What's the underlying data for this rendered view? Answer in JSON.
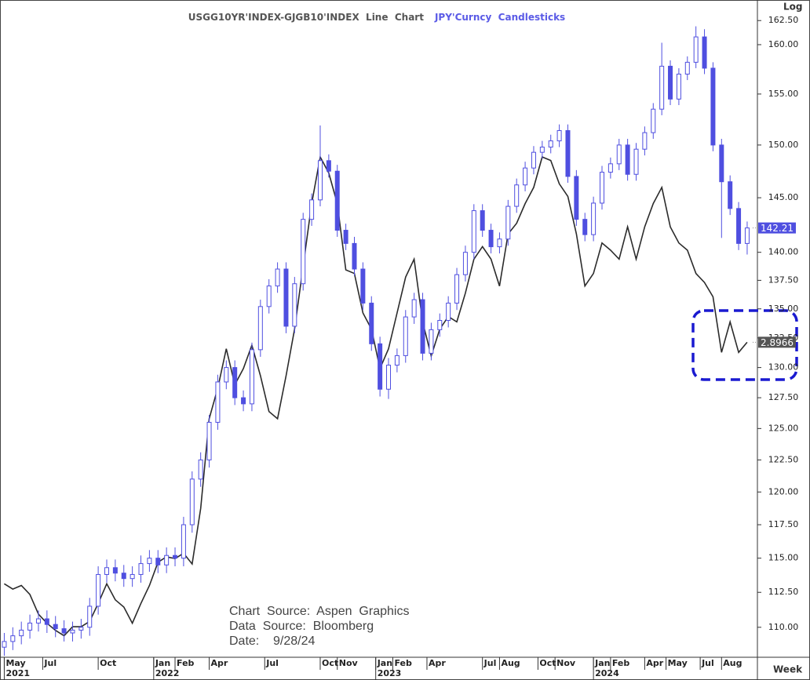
{
  "chart_data": {
    "type": "candlestick",
    "log_scale": true,
    "scale_label": "Log",
    "period_label": "Week",
    "source_lines": [
      "Chart  Source:  Aspen  Graphics",
      "Data  Source:  Bloomberg",
      "Date:    9/28/24"
    ],
    "xlim": [
      -1,
      176.4
    ],
    "ylim": [
      107.9,
      164.0
    ],
    "y2lim": [
      1.14,
      4.77
    ],
    "yticks": [
      {
        "value": 110,
        "label": "110.00"
      },
      {
        "value": 112.5,
        "label": "112.50"
      },
      {
        "value": 115,
        "label": "115.00"
      },
      {
        "value": 117.5,
        "label": "117.50"
      },
      {
        "value": 120,
        "label": "120.00"
      },
      {
        "value": 122.5,
        "label": "122.50"
      },
      {
        "value": 125,
        "label": "125.00"
      },
      {
        "value": 127.5,
        "label": "127.50"
      },
      {
        "value": 130,
        "label": "130.00"
      },
      {
        "value": 132.5,
        "label": "132.50"
      },
      {
        "value": 135,
        "label": "135.00"
      },
      {
        "value": 137.5,
        "label": "137.50"
      },
      {
        "value": 140,
        "label": "140.00"
      },
      {
        "value": 145,
        "label": "145.00"
      },
      {
        "value": 150,
        "label": "150.00"
      },
      {
        "value": 155,
        "label": "155.00"
      },
      {
        "value": 160,
        "label": "160.00"
      },
      {
        "value": 162.5,
        "label": "162.50"
      }
    ],
    "xticks": [
      {
        "value": 0,
        "label": "May"
      },
      {
        "value": 9,
        "label": "Jul"
      },
      {
        "value": 22,
        "label": "Oct"
      },
      {
        "value": 35,
        "label": "Jan"
      },
      {
        "value": 40,
        "label": "Feb"
      },
      {
        "value": 48,
        "label": "Apr"
      },
      {
        "value": 61,
        "label": "Jul"
      },
      {
        "value": 74,
        "label": "Oct"
      },
      {
        "value": 78,
        "label": "Nov"
      },
      {
        "value": 87,
        "label": "Jan"
      },
      {
        "value": 91,
        "label": "Feb"
      },
      {
        "value": 99,
        "label": "Apr"
      },
      {
        "value": 112,
        "label": "Jul"
      },
      {
        "value": 116,
        "label": "Aug"
      },
      {
        "value": 125,
        "label": "Oct"
      },
      {
        "value": 129,
        "label": "Nov"
      },
      {
        "value": 138,
        "label": "Jan"
      },
      {
        "value": 142,
        "label": "Feb"
      },
      {
        "value": 150,
        "label": "Apr"
      },
      {
        "value": 155,
        "label": "May"
      },
      {
        "value": 163,
        "label": "Jul"
      },
      {
        "value": 168,
        "label": "Aug"
      }
    ],
    "year_ticks": [
      {
        "value": 0,
        "label": "2021"
      },
      {
        "value": 35,
        "label": "2022"
      },
      {
        "value": 87,
        "label": "2023"
      },
      {
        "value": 138,
        "label": "2024"
      }
    ],
    "x": [
      0,
      2,
      4,
      6,
      8,
      10,
      12,
      14,
      16,
      18,
      20,
      22,
      24,
      26,
      28,
      30,
      32,
      34,
      36,
      38,
      40,
      42,
      44,
      46,
      48,
      50,
      52,
      54,
      56,
      58,
      60,
      62,
      64,
      66,
      68,
      70,
      72,
      74,
      76,
      78,
      80,
      82,
      84,
      86,
      88,
      90,
      92,
      94,
      96,
      98,
      100,
      102,
      104,
      106,
      108,
      110,
      112,
      114,
      116,
      118,
      120,
      122,
      124,
      126,
      128,
      130,
      132,
      134,
      136,
      138,
      140,
      142,
      144,
      146,
      148,
      150,
      152,
      154,
      156,
      158,
      160,
      162,
      164,
      166,
      168,
      170,
      172,
      174
    ],
    "series": [
      {
        "name": "USGG10YR'INDEX-GJGB10'INDEX  Line  Chart",
        "type": "line",
        "axis": "y2",
        "color": "#2b2b2b",
        "name_color": "#555555",
        "values": [
          1.55,
          1.52,
          1.54,
          1.49,
          1.38,
          1.33,
          1.29,
          1.26,
          1.31,
          1.31,
          1.34,
          1.44,
          1.55,
          1.46,
          1.42,
          1.33,
          1.44,
          1.54,
          1.67,
          1.7,
          1.69,
          1.72,
          1.66,
          1.97,
          2.47,
          2.64,
          2.86,
          2.66,
          2.75,
          2.88,
          2.71,
          2.51,
          2.47,
          2.71,
          2.97,
          3.32,
          3.67,
          3.93,
          3.84,
          3.67,
          3.3,
          3.28,
          3.06,
          2.97,
          2.75,
          2.86,
          3.06,
          3.26,
          3.36,
          3.01,
          2.82,
          2.97,
          3.04,
          3.01,
          3.17,
          3.36,
          3.43,
          3.36,
          3.21,
          3.5,
          3.56,
          3.67,
          3.76,
          3.93,
          3.91,
          3.78,
          3.71,
          3.5,
          3.21,
          3.28,
          3.45,
          3.41,
          3.36,
          3.54,
          3.36,
          3.54,
          3.67,
          3.76,
          3.54,
          3.45,
          3.41,
          3.28,
          3.23,
          3.15,
          2.84,
          3.01,
          2.84,
          2.8966
        ],
        "label_color": "#555555"
      },
      {
        "name": "JPY'Curncy  Candlesticks",
        "type": "candlestick",
        "color": "#4f4fe0",
        "name_color": "#5a5ae6",
        "open": [
          108.6,
          109.0,
          109.4,
          109.8,
          110.3,
          110.6,
          110.2,
          109.9,
          109.6,
          109.8,
          110.0,
          111.5,
          113.8,
          114.3,
          113.9,
          113.5,
          113.8,
          114.6,
          115.0,
          114.5,
          115.2,
          115.0,
          117.5,
          121.0,
          122.5,
          125.5,
          128.8,
          130.0,
          127.5,
          127.0,
          131.5,
          135.2,
          137.0,
          138.5,
          133.5,
          137.2,
          143.0,
          144.8,
          148.5,
          147.5,
          142.0,
          140.8,
          138.5,
          135.5,
          132.0,
          128.2,
          130.2,
          131.0,
          134.3,
          135.8,
          131.2,
          133.2,
          134.0,
          135.5,
          138.0,
          140.0,
          143.8,
          142.0,
          140.5,
          141.2,
          144.2,
          146.2,
          147.8,
          149.3,
          149.8,
          150.4,
          151.4,
          147.0,
          143.0,
          141.6,
          144.5,
          147.4,
          148.2,
          150.0,
          147.2,
          149.6,
          151.2,
          153.5,
          157.8,
          154.5,
          157.0,
          158.2,
          160.8,
          157.6,
          150.0,
          146.5,
          144.0,
          140.8
        ],
        "high": [
          109.6,
          110.0,
          110.4,
          110.9,
          111.2,
          111.2,
          110.8,
          110.5,
          110.4,
          110.6,
          112.1,
          114.4,
          114.9,
          114.9,
          114.5,
          114.4,
          115.2,
          115.6,
          115.6,
          115.8,
          115.8,
          118.1,
          121.6,
          123.1,
          126.1,
          129.4,
          130.6,
          130.6,
          128.1,
          132.1,
          135.8,
          137.6,
          139.1,
          139.1,
          137.8,
          143.6,
          145.4,
          151.9,
          149.1,
          148.1,
          142.6,
          141.4,
          139.1,
          136.1,
          132.6,
          130.8,
          131.6,
          134.9,
          136.4,
          136.4,
          133.8,
          134.6,
          136.1,
          138.6,
          140.6,
          144.4,
          144.4,
          142.6,
          141.8,
          144.8,
          146.8,
          148.4,
          149.9,
          150.4,
          151.0,
          152.0,
          152.0,
          147.6,
          143.6,
          145.1,
          148.0,
          148.8,
          150.6,
          150.6,
          150.2,
          151.8,
          154.1,
          160.2,
          158.4,
          157.6,
          158.8,
          161.9,
          161.6,
          158.2,
          150.6,
          147.1,
          144.6,
          142.8
        ],
        "low": [
          108.0,
          108.4,
          108.8,
          109.2,
          109.7,
          109.6,
          109.3,
          109.0,
          109.0,
          109.2,
          109.4,
          110.9,
          113.2,
          113.3,
          112.9,
          112.9,
          113.2,
          114.0,
          113.9,
          113.9,
          114.4,
          114.4,
          116.9,
          120.4,
          121.9,
          124.9,
          128.2,
          126.9,
          126.4,
          126.4,
          130.9,
          134.6,
          136.4,
          132.9,
          132.9,
          136.6,
          142.4,
          144.2,
          146.9,
          141.4,
          140.2,
          137.9,
          134.9,
          131.4,
          127.6,
          127.4,
          129.6,
          130.4,
          133.7,
          130.6,
          130.6,
          132.6,
          133.4,
          134.9,
          137.4,
          139.4,
          141.4,
          139.9,
          139.9,
          140.6,
          143.6,
          145.6,
          147.2,
          148.7,
          149.2,
          149.8,
          146.4,
          142.4,
          141.0,
          141.0,
          143.9,
          146.8,
          147.6,
          146.6,
          146.6,
          149.0,
          150.6,
          152.9,
          153.9,
          153.9,
          156.4,
          157.6,
          157.0,
          149.4,
          141.3,
          143.4,
          140.2,
          139.8
        ],
        "close": [
          109.0,
          109.4,
          109.8,
          110.3,
          110.6,
          110.2,
          109.9,
          109.6,
          109.8,
          110.0,
          111.5,
          113.8,
          114.3,
          113.9,
          113.5,
          113.8,
          114.6,
          115.0,
          114.5,
          115.2,
          115.0,
          117.5,
          121.0,
          122.5,
          125.5,
          128.8,
          130.0,
          127.5,
          127.0,
          131.5,
          135.2,
          137.0,
          138.5,
          133.5,
          137.2,
          143.0,
          144.8,
          148.5,
          147.5,
          142.0,
          140.8,
          138.5,
          135.5,
          132.0,
          128.2,
          130.2,
          131.0,
          134.3,
          135.8,
          131.2,
          133.2,
          134.0,
          135.5,
          138.0,
          140.0,
          143.8,
          142.0,
          140.5,
          141.2,
          144.2,
          146.2,
          147.8,
          149.3,
          149.8,
          150.4,
          151.4,
          147.0,
          143.0,
          141.6,
          144.5,
          147.4,
          148.2,
          150.0,
          147.2,
          149.6,
          151.2,
          153.5,
          157.8,
          154.5,
          157.0,
          158.2,
          160.8,
          157.6,
          150.0,
          146.5,
          144.0,
          140.8,
          142.21
        ],
        "label_color": "#4f4fe0"
      }
    ]
  }
}
